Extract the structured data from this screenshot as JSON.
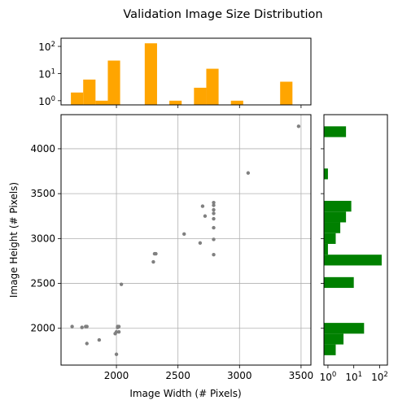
{
  "chart_data": {
    "type": "scatter",
    "title": "Validation Image Size Distribution",
    "xlabel": "Image Width (# Pixels)",
    "ylabel": "Image Height (# Pixels)",
    "xlim": [
      1550,
      3580
    ],
    "ylim": [
      1590,
      4380
    ],
    "grid": true,
    "x_ticks": [
      2000,
      2500,
      3000,
      3500
    ],
    "y_ticks": [
      2000,
      2500,
      3000,
      3500,
      4000
    ],
    "point_color": "#808080",
    "points": [
      [
        1640,
        2020
      ],
      [
        1720,
        2010
      ],
      [
        1750,
        2020
      ],
      [
        1760,
        2020
      ],
      [
        1760,
        1830
      ],
      [
        1860,
        1870
      ],
      [
        1990,
        1940
      ],
      [
        2000,
        1960
      ],
      [
        2010,
        2010
      ],
      [
        2010,
        2020
      ],
      [
        2020,
        1960
      ],
      [
        2020,
        2020
      ],
      [
        2000,
        1710
      ],
      [
        2040,
        2490
      ],
      [
        2300,
        2740
      ],
      [
        2310,
        2830
      ],
      [
        2320,
        2830
      ],
      [
        2550,
        3050
      ],
      [
        2680,
        2950
      ],
      [
        2700,
        3360
      ],
      [
        2720,
        3250
      ],
      [
        2790,
        3400
      ],
      [
        2790,
        3370
      ],
      [
        2790,
        3320
      ],
      [
        2790,
        3280
      ],
      [
        2790,
        3220
      ],
      [
        2790,
        3120
      ],
      [
        2790,
        2990
      ],
      [
        2790,
        2820
      ],
      [
        3070,
        3730
      ],
      [
        3480,
        4250
      ]
    ],
    "hist_x": {
      "type": "bar",
      "color": "#ffa500",
      "scale": "log",
      "ylim": [
        0.7,
        200
      ],
      "y_ticks": [
        {
          "value": 1,
          "base": "10",
          "exp": "0"
        },
        {
          "value": 10,
          "base": "10",
          "exp": "1"
        },
        {
          "value": 100,
          "base": "10",
          "exp": "2"
        }
      ],
      "bins": [
        [
          1630,
          1730,
          2
        ],
        [
          1730,
          1830,
          6
        ],
        [
          1830,
          1930,
          1
        ],
        [
          1930,
          2030,
          30
        ],
        [
          2030,
          2130,
          0
        ],
        [
          2130,
          2230,
          0
        ],
        [
          2230,
          2330,
          130
        ],
        [
          2330,
          2430,
          0
        ],
        [
          2430,
          2530,
          1
        ],
        [
          2530,
          2630,
          0
        ],
        [
          2630,
          2730,
          3
        ],
        [
          2730,
          2830,
          15
        ],
        [
          2830,
          2930,
          0
        ],
        [
          2930,
          3030,
          1
        ],
        [
          3030,
          3130,
          0
        ],
        [
          3130,
          3230,
          0
        ],
        [
          3230,
          3330,
          0
        ],
        [
          3330,
          3430,
          5
        ]
      ]
    },
    "hist_y": {
      "type": "bar",
      "color": "#008000",
      "scale": "log",
      "xlim": [
        0.7,
        200
      ],
      "x_ticks": [
        {
          "value": 1,
          "base": "10",
          "exp": "0"
        },
        {
          "value": 10,
          "base": "10",
          "exp": "1"
        },
        {
          "value": 100,
          "base": "10",
          "exp": "2"
        }
      ],
      "bins": [
        [
          1700,
          1820,
          2
        ],
        [
          1820,
          1940,
          4
        ],
        [
          1940,
          2060,
          25
        ],
        [
          2450,
          2570,
          10
        ],
        [
          2700,
          2820,
          120
        ],
        [
          2820,
          2940,
          1
        ],
        [
          2940,
          3060,
          2
        ],
        [
          3060,
          3180,
          3
        ],
        [
          3180,
          3300,
          5
        ],
        [
          3300,
          3420,
          8
        ],
        [
          3660,
          3780,
          1
        ],
        [
          4130,
          4250,
          5
        ]
      ]
    }
  }
}
